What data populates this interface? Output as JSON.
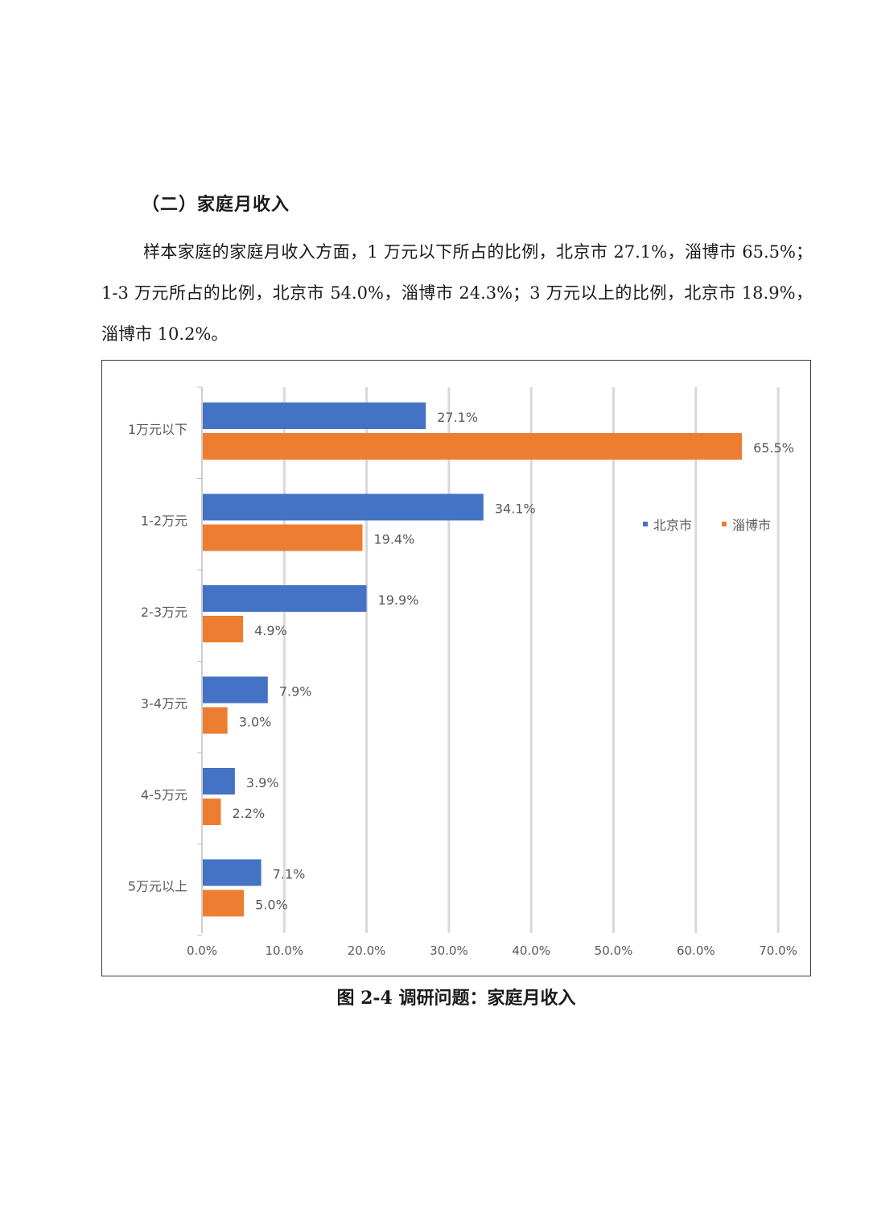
{
  "section": {
    "heading": "（二）家庭月收入",
    "paragraph": "样本家庭的家庭月收入方面，1 万元以下所占的比例，北京市 27.1%，淄博市 65.5%；1-3 万元所占的比例，北京市 54.0%，淄博市 24.3%；3 万元以上的比例，北京市 18.9%，淄博市 10.2%。"
  },
  "chart_data": {
    "type": "bar",
    "orientation": "horizontal",
    "categories": [
      "1万元以下",
      "1-2万元",
      "2-3万元",
      "3-4万元",
      "4-5万元",
      "5万元以上"
    ],
    "series": [
      {
        "name": "北京市",
        "color": "#4472C4",
        "values": [
          27.1,
          34.1,
          19.9,
          7.9,
          3.9,
          7.1
        ],
        "labels": [
          "27.1%",
          "34.1%",
          "19.9%",
          "7.9%",
          "3.9%",
          "7.1%"
        ]
      },
      {
        "name": "淄博市",
        "color": "#ED7D31",
        "values": [
          65.5,
          19.4,
          4.9,
          3.0,
          2.2,
          5.0
        ],
        "labels": [
          "65.5%",
          "19.4%",
          "4.9%",
          "3.0%",
          "2.2%",
          "5.0%"
        ]
      }
    ],
    "xlim": [
      0,
      70
    ],
    "x_ticks": [
      "0.0%",
      "10.0%",
      "20.0%",
      "30.0%",
      "40.0%",
      "50.0%",
      "60.0%",
      "70.0%"
    ],
    "grid": "vertical",
    "legend_position": "right"
  },
  "caption": "图 2-4 调研问题：家庭月收入"
}
